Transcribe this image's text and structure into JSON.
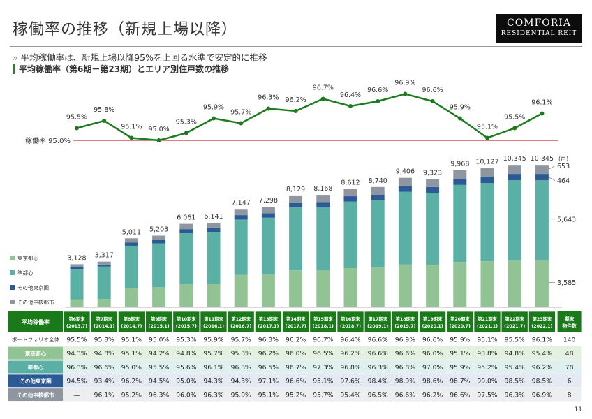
{
  "header": {
    "title": "稼働率の推移（新規上場以降）",
    "logo_line1": "COMFORIA",
    "logo_line2": "RESIDENTIAL REIT"
  },
  "bullet": "平均稼働率は、新規上場以降95%を上回る水準で安定的に推移",
  "subtitle": "平均稼働率（第6期－第23期）とエリア別住戸数の推移",
  "line_chart": {
    "ref_label": "稼働率 95.0%",
    "values": [
      95.5,
      95.8,
      95.1,
      95.0,
      95.3,
      95.9,
      95.7,
      96.3,
      96.2,
      96.7,
      96.4,
      96.6,
      96.9,
      96.6,
      95.9,
      95.1,
      95.5,
      96.1
    ],
    "labels": [
      "95.5%",
      "95.8%",
      "95.1%",
      "95.0%",
      "95.3%",
      "95.9%",
      "95.7%",
      "96.3%",
      "96.2%",
      "96.7%",
      "96.4%",
      "96.6%",
      "96.9%",
      "96.6%",
      "95.9%",
      "95.1%",
      "95.5%",
      "96.1%"
    ]
  },
  "chart_data": {
    "type": "bar",
    "stacked": true,
    "categories": [
      "第6期末(2013.7)",
      "第7期末(2014.1)",
      "第8期末(2014.7)",
      "第9期末(2015.1)",
      "第10期末(2015.7)",
      "第11期末(2016.1)",
      "第12期末(2016.7)",
      "第13期末(2017.1)",
      "第14期末(2017.7)",
      "第15期末(2018.1)",
      "第16期末(2018.7)",
      "第17期末(2019.1)",
      "第18期末(2019.7)",
      "第19期末(2020.1)",
      "第20期末(2020.7)",
      "第21期末(2021.1)",
      "第22期末(2021.7)",
      "第23期末(2022.1)"
    ],
    "totals": [
      3128,
      3317,
      5011,
      5203,
      6061,
      6141,
      7147,
      7298,
      8129,
      8168,
      8612,
      8740,
      9406,
      9323,
      9968,
      10127,
      10345,
      10345
    ],
    "total_labels": [
      "3,128",
      "3,317",
      "5,011",
      "5,203",
      "6,061",
      "6,141",
      "7,147",
      "7,298",
      "8,129",
      "8,168",
      "8,612",
      "8,740",
      "9,406",
      "9,323",
      "9,968",
      "10,127",
      "10,345",
      "10,345"
    ],
    "unit": "(戸)",
    "series": [
      {
        "name": "東京都心",
        "color": "#92c394"
      },
      {
        "name": "準都心",
        "color": "#5ab0a4"
      },
      {
        "name": "その他東京圏",
        "color": "#2b5a96"
      },
      {
        "name": "その他中核都市",
        "color": "#8e969f"
      }
    ],
    "last_breakdown": {
      "values": [
        3585,
        5643,
        464,
        653
      ],
      "labels": [
        "3,585",
        "5,643",
        "464",
        "653"
      ]
    },
    "ylim": [
      0,
      11000
    ]
  },
  "table": {
    "header_first": "平均稼働率",
    "header_last": "期末物件数",
    "header_last_l1": "期末",
    "header_last_l2": "物件数",
    "col_l1": [
      "第6期末",
      "第7期末",
      "第8期末",
      "第9期末",
      "第10期末",
      "第11期末",
      "第12期末",
      "第13期末",
      "第14期末",
      "第15期末",
      "第16期末",
      "第17期末",
      "第18期末",
      "第19期末",
      "第20期末",
      "第21期末",
      "第22期末",
      "第23期末"
    ],
    "col_l2": [
      "(2013.7)",
      "(2014.1)",
      "(2014.7)",
      "(2015.1)",
      "(2015.7)",
      "(2016.1)",
      "(2016.7)",
      "(2017.1)",
      "(2017.7)",
      "(2018.1)",
      "(2018.7)",
      "(2019.1)",
      "(2019.7)",
      "(2020.1)",
      "(2020.7)",
      "(2021.1)",
      "(2021.7)",
      "(2022.1)"
    ],
    "rows": [
      {
        "label": "ポートフォリオ全体",
        "cells": [
          "95.5%",
          "95.8%",
          "95.1%",
          "95.0%",
          "95.3%",
          "95.9%",
          "95.7%",
          "96.3%",
          "96.2%",
          "96.7%",
          "96.4%",
          "96.6%",
          "96.9%",
          "96.6%",
          "95.9%",
          "95.1%",
          "95.5%",
          "96.1%"
        ],
        "count": "140"
      },
      {
        "label": "東京都心",
        "cells": [
          "94.3%",
          "94.8%",
          "95.1%",
          "94.2%",
          "94.8%",
          "95.7%",
          "95.3%",
          "96.2%",
          "96.0%",
          "96.5%",
          "96.2%",
          "96.6%",
          "96.6%",
          "96.0%",
          "95.1%",
          "93.8%",
          "94.8%",
          "95.4%"
        ],
        "count": "48"
      },
      {
        "label": "準都心",
        "cells": [
          "96.3%",
          "96.6%",
          "95.0%",
          "95.5%",
          "95.6%",
          "96.1%",
          "96.3%",
          "96.5%",
          "96.7%",
          "97.3%",
          "96.8%",
          "96.3%",
          "96.8%",
          "97.0%",
          "95.9%",
          "95.2%",
          "95.4%",
          "96.2%"
        ],
        "count": "78"
      },
      {
        "label": "その他東京圏",
        "cells": [
          "94.5%",
          "93.4%",
          "96.2%",
          "94.5%",
          "95.0%",
          "94.3%",
          "94.3%",
          "97.1%",
          "96.6%",
          "95.1%",
          "97.6%",
          "98.4%",
          "98.9%",
          "98.6%",
          "98.7%",
          "99.0%",
          "98.5%",
          "98.5%"
        ],
        "count": "6"
      },
      {
        "label": "その他中核都市",
        "cells": [
          "—",
          "96.1%",
          "95.2%",
          "96.3%",
          "96.0%",
          "96.3%",
          "95.9%",
          "95.1%",
          "95.2%",
          "95.7%",
          "95.4%",
          "96.5%",
          "96.6%",
          "96.2%",
          "96.6%",
          "97.5%",
          "96.3%",
          "96.9%"
        ],
        "count": "8"
      }
    ]
  },
  "page_number": "11"
}
